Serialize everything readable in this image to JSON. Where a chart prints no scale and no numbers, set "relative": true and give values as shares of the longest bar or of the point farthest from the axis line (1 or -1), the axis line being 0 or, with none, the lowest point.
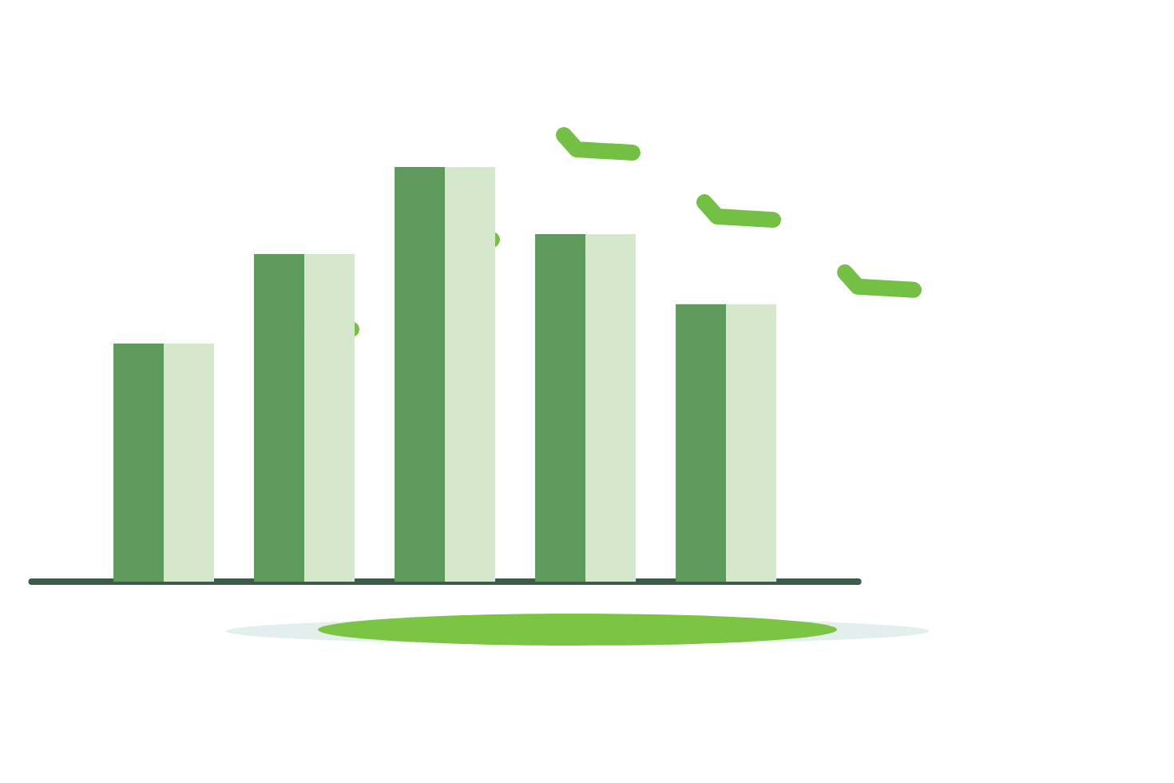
{
  "chart_data": {
    "type": "bar",
    "relative": true,
    "categories": [
      null,
      null,
      null,
      null,
      null
    ],
    "series": [
      {
        "color": "#5e9a5c",
        "values": [
          0.574,
          0.79,
          1.0,
          0.838,
          0.669
        ]
      },
      {
        "color": "#d5e8cc",
        "values": [
          0.574,
          0.79,
          1.0,
          0.838,
          0.669
        ]
      }
    ]
  }
}
